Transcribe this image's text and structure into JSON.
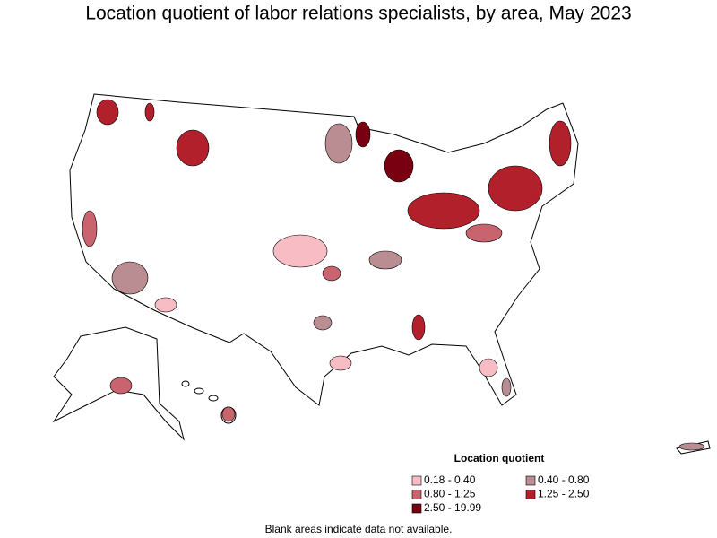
{
  "title": "Location quotient of labor relations specialists, by area, May 2023",
  "legend": {
    "title": "Location quotient",
    "items": [
      {
        "label": "0.18 - 0.40",
        "color": "#f7bcc4"
      },
      {
        "label": "0.40 - 0.80",
        "color": "#b98d92"
      },
      {
        "label": "0.80 - 1.25",
        "color": "#c9636d"
      },
      {
        "label": "1.25 - 2.50",
        "color": "#b2202c"
      },
      {
        "label": "2.50 - 19.99",
        "color": "#780010"
      }
    ]
  },
  "footnote": "Blank areas indicate data not available."
}
